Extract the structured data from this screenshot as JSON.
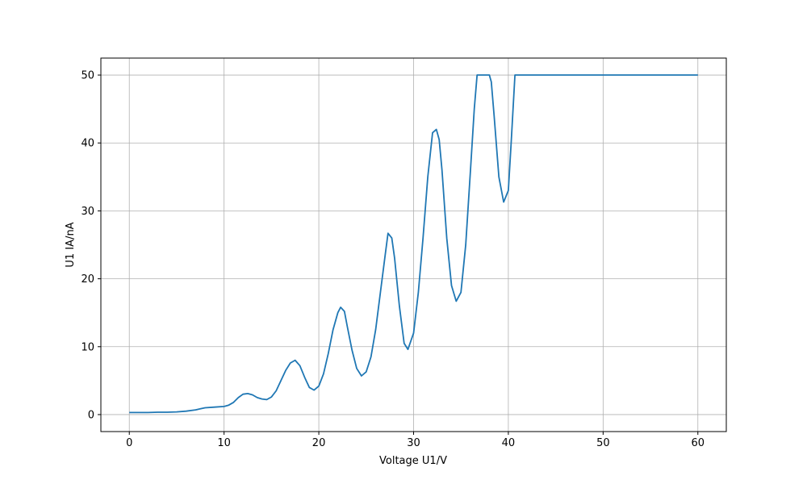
{
  "chart_data": {
    "type": "line",
    "title": "",
    "xlabel": "Voltage U1/V",
    "ylabel": "U1 IA/nA",
    "xlim": [
      -3,
      63
    ],
    "ylim": [
      -2.5,
      52.5
    ],
    "xticks": [
      0,
      10,
      20,
      30,
      40,
      50,
      60
    ],
    "yticks": [
      0,
      10,
      20,
      30,
      40,
      50
    ],
    "grid": true,
    "series": [
      {
        "color": "#1f77b4",
        "x": [
          0,
          1,
          2,
          3,
          4,
          5,
          6,
          7,
          7.5,
          8,
          9,
          10,
          10.5,
          11,
          11.5,
          12,
          12.5,
          13,
          13.5,
          14,
          14.5,
          15,
          15.5,
          16,
          16.5,
          17,
          17.5,
          18,
          18.5,
          19,
          19.5,
          20,
          20.5,
          21,
          21.5,
          22,
          22.3,
          22.7,
          23,
          23.5,
          24,
          24.5,
          25,
          25.5,
          26,
          26.5,
          27,
          27.3,
          27.7,
          28,
          28.5,
          29,
          29.4,
          30,
          30.5,
          31,
          31.5,
          32,
          32.4,
          32.7,
          33,
          33.5,
          34,
          34.5,
          35,
          35.5,
          36,
          36.4,
          36.7,
          37,
          38,
          38.2,
          38.5,
          39,
          39.5,
          40,
          40.3,
          40.7,
          41,
          45,
          50,
          55,
          60
        ],
        "values": [
          0.3,
          0.3,
          0.3,
          0.35,
          0.35,
          0.4,
          0.5,
          0.7,
          0.85,
          1.0,
          1.1,
          1.2,
          1.4,
          1.8,
          2.5,
          3.0,
          3.1,
          2.9,
          2.5,
          2.3,
          2.2,
          2.6,
          3.5,
          5.0,
          6.5,
          7.6,
          8.0,
          7.2,
          5.5,
          4.0,
          3.6,
          4.2,
          6.0,
          9.0,
          12.5,
          15.0,
          15.8,
          15.2,
          13.0,
          9.5,
          6.8,
          5.7,
          6.3,
          8.5,
          12.5,
          18.0,
          23.5,
          26.7,
          26.0,
          23.0,
          16.0,
          10.5,
          9.6,
          12.0,
          18.0,
          26.0,
          35.0,
          41.5,
          42.0,
          40.5,
          36.0,
          26.0,
          19.0,
          16.7,
          18.0,
          25.0,
          36.0,
          45.0,
          50.0,
          50.0,
          50.0,
          49.0,
          44.0,
          35.0,
          31.3,
          33.0,
          40.0,
          50.0,
          50.0,
          50.0,
          50.0,
          50.0,
          50.0
        ]
      }
    ]
  }
}
